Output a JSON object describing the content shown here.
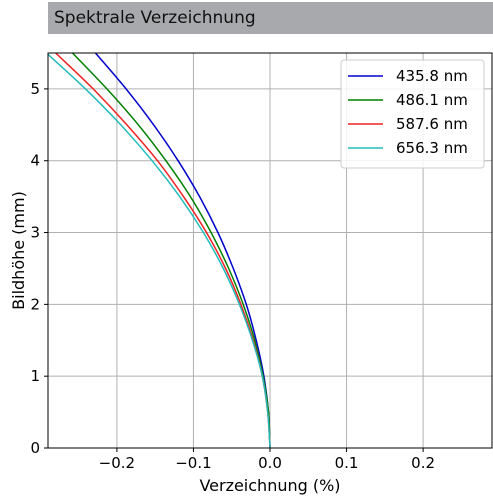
{
  "panel": {
    "title": "Spektrale Verzeichnung"
  },
  "chart_data": {
    "type": "line",
    "title": "",
    "xlabel": "Verzeichnung (%)",
    "ylabel": "Bildhöhe (mm)",
    "xlim": [
      -0.29,
      0.29
    ],
    "ylim": [
      0,
      5.5
    ],
    "x_ticks": [
      -0.2,
      -0.1,
      0.0,
      0.1,
      0.2
    ],
    "x_tick_labels": [
      "−0.2",
      "−0.1",
      "0.0",
      "0.1",
      "0.2"
    ],
    "y_ticks": [
      0,
      1,
      2,
      3,
      4,
      5
    ],
    "y_tick_labels": [
      "0",
      "1",
      "2",
      "3",
      "4",
      "5"
    ],
    "grid": true,
    "legend_position": "top-right",
    "series": [
      {
        "name": "435.8 nm",
        "color": "#0000cc",
        "y": [
          0,
          0.5,
          1,
          1.5,
          2,
          2.5,
          3,
          3.5,
          4,
          4.5,
          5,
          5.5
        ],
        "x": [
          0,
          -0.002,
          -0.008,
          -0.018,
          -0.031,
          -0.048,
          -0.068,
          -0.092,
          -0.12,
          -0.152,
          -0.188,
          -0.228
        ]
      },
      {
        "name": "486.1 nm",
        "color": "#008000",
        "y": [
          0,
          0.5,
          1,
          1.5,
          2,
          2.5,
          3,
          3.5,
          4,
          4.5,
          5,
          5.5
        ],
        "x": [
          0,
          -0.002,
          -0.009,
          -0.02,
          -0.035,
          -0.054,
          -0.077,
          -0.104,
          -0.136,
          -0.172,
          -0.213,
          -0.258
        ]
      },
      {
        "name": "587.6 nm",
        "color": "#ee2222",
        "y": [
          0,
          0.5,
          1,
          1.5,
          2,
          2.5,
          3,
          3.5,
          4,
          4.5,
          5,
          5.5
        ],
        "x": [
          0,
          -0.003,
          -0.01,
          -0.022,
          -0.038,
          -0.058,
          -0.083,
          -0.113,
          -0.147,
          -0.187,
          -0.231,
          -0.28
        ]
      },
      {
        "name": "656.3 nm",
        "color": "#22bbbb",
        "y": [
          0,
          0.5,
          1,
          1.5,
          2,
          2.5,
          3,
          3.5,
          4,
          4.5,
          5,
          5.5
        ],
        "x": [
          0,
          -0.003,
          -0.01,
          -0.023,
          -0.04,
          -0.061,
          -0.087,
          -0.118,
          -0.154,
          -0.195,
          -0.241,
          -0.292
        ]
      }
    ]
  }
}
